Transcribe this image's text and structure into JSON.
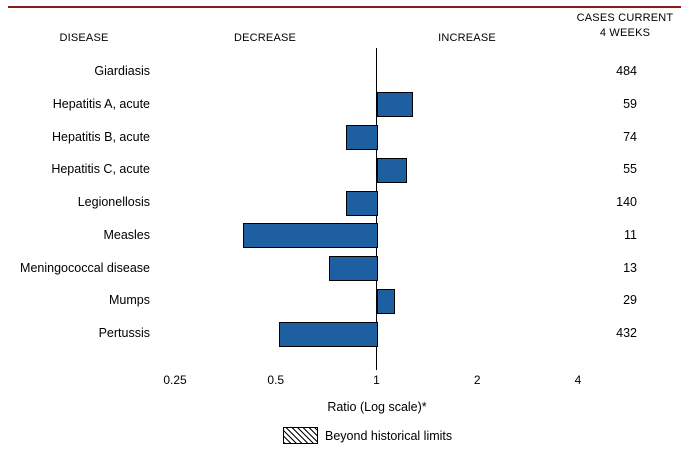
{
  "header": {
    "disease": "DISEASE",
    "decrease": "DECREASE",
    "increase": "INCREASE",
    "cases_line1": "CASES CURRENT",
    "cases_line2": "4 WEEKS"
  },
  "chart_data": {
    "type": "bar",
    "orientation": "horizontal",
    "scale": "log2",
    "baseline": 1,
    "x_ticks": [
      0.25,
      0.5,
      1,
      2,
      4
    ],
    "x_tick_labels": [
      "0.25",
      "0.5",
      "1",
      "2",
      "4"
    ],
    "xlabel": "Ratio (Log scale)*",
    "xlim": [
      0.25,
      4
    ],
    "grid": false,
    "rows": [
      {
        "disease": "Giardiasis",
        "ratio": 1.0,
        "cases": "484",
        "beyond_limits": false
      },
      {
        "disease": "Hepatitis A, acute",
        "ratio": 1.27,
        "cases": "59",
        "beyond_limits": false
      },
      {
        "disease": "Hepatitis B, acute",
        "ratio": 0.81,
        "cases": "74",
        "beyond_limits": false
      },
      {
        "disease": "Hepatitis C, acute",
        "ratio": 1.22,
        "cases": "55",
        "beyond_limits": false
      },
      {
        "disease": "Legionellosis",
        "ratio": 0.81,
        "cases": "140",
        "beyond_limits": false
      },
      {
        "disease": "Measles",
        "ratio": 0.4,
        "cases": "11",
        "beyond_limits": false
      },
      {
        "disease": "Meningococcal disease",
        "ratio": 0.72,
        "cases": "13",
        "beyond_limits": false
      },
      {
        "disease": "Mumps",
        "ratio": 1.12,
        "cases": "29",
        "beyond_limits": false
      },
      {
        "disease": "Pertussis",
        "ratio": 0.51,
        "cases": "432",
        "beyond_limits": false
      }
    ],
    "legend": {
      "label": "Beyond historical limits",
      "swatch": "hatched"
    },
    "legend_position": "bottom-center",
    "colors": {
      "bar": "#1d5fa0",
      "rule": "#8b1a1a",
      "axis_line": "#000000",
      "text": "#000000"
    }
  }
}
